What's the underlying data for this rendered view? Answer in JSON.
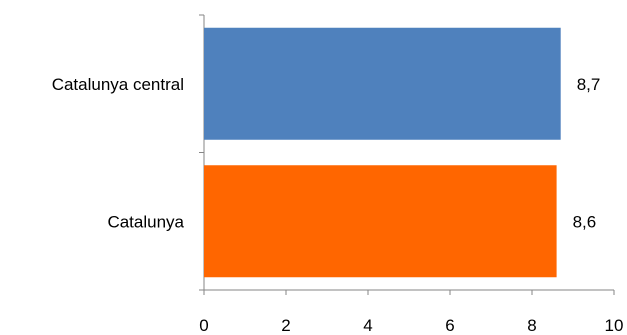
{
  "chart_data": {
    "type": "bar",
    "orientation": "horizontal",
    "title": "",
    "xlabel": "",
    "ylabel": "",
    "categories": [
      "Catalunya central",
      "Catalunya"
    ],
    "values": [
      8.7,
      8.6
    ],
    "data_labels": [
      "8,7",
      "8,6"
    ],
    "colors": [
      "#4F81BD",
      "#FF6600"
    ],
    "xlim": [
      0,
      10
    ],
    "x_ticks": [
      0,
      2,
      4,
      6,
      8,
      10
    ],
    "grid": false,
    "legend": "none"
  }
}
